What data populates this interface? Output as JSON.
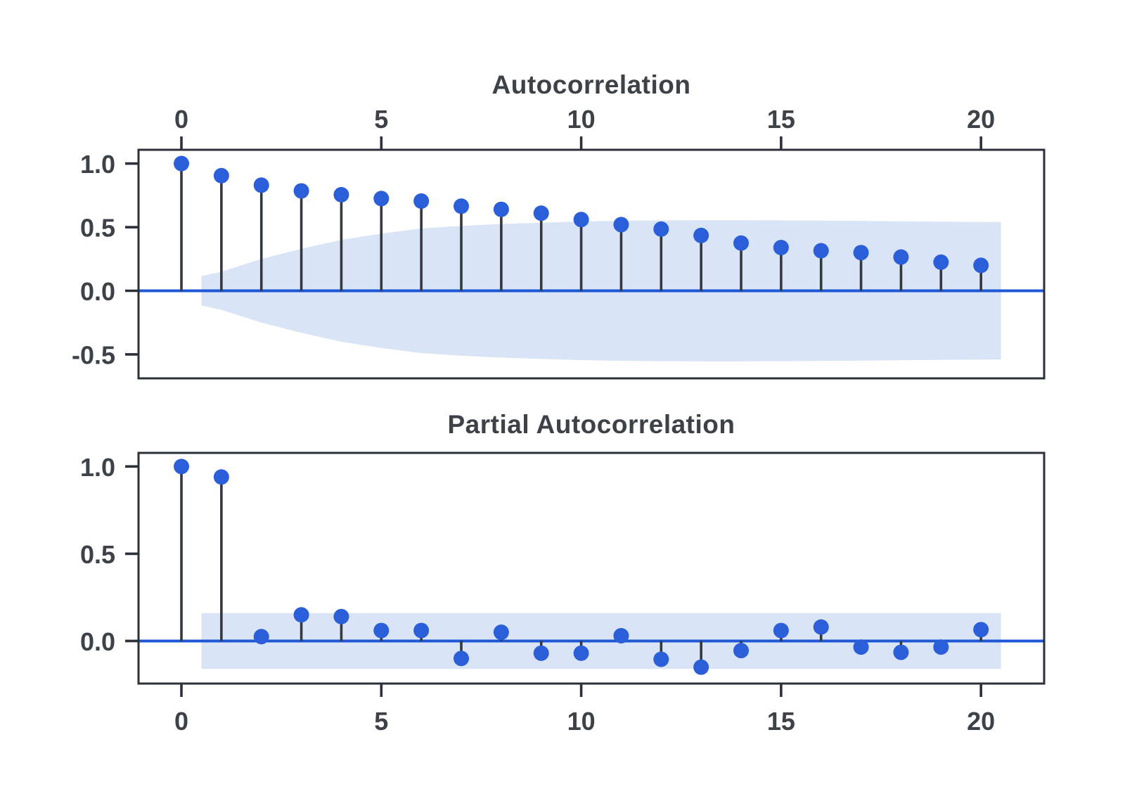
{
  "figure": {
    "background": "#ffffff",
    "colors": {
      "dot": "#2b5ed9",
      "stem": "#34383f",
      "zero_line": "#1e58d6",
      "confidence_band": "#dae4f7",
      "axis": "#2c303a",
      "tick_text": "#3d4148"
    }
  },
  "chart_data": [
    {
      "type": "stem",
      "title": "Autocorrelation",
      "xlabel": "",
      "ylabel": "",
      "x_axis_position": "top",
      "x": [
        0,
        1,
        2,
        3,
        4,
        5,
        6,
        7,
        8,
        9,
        10,
        11,
        12,
        13,
        14,
        15,
        16,
        17,
        18,
        19,
        20
      ],
      "values": [
        1.0,
        0.905,
        0.83,
        0.785,
        0.755,
        0.725,
        0.705,
        0.665,
        0.64,
        0.61,
        0.56,
        0.52,
        0.485,
        0.435,
        0.375,
        0.34,
        0.315,
        0.3,
        0.265,
        0.225,
        0.2
      ],
      "x_ticks": [
        0,
        5,
        10,
        15,
        20
      ],
      "x_tick_labels": [
        "0",
        "5",
        "10",
        "15",
        "20"
      ],
      "y_ticks": [
        1.0,
        0.5,
        0.0,
        -0.5
      ],
      "y_tick_labels": [
        "1.0",
        "0.5",
        "0.0",
        "-0.5"
      ],
      "xlim": [
        -1.073,
        21.58
      ],
      "ylim": [
        -0.688,
        1.108
      ],
      "zero_line": 0,
      "grid": false,
      "legend": null,
      "conf_band": {
        "x": [
          0.5,
          1,
          2,
          3,
          4,
          5,
          6,
          7,
          8,
          9,
          10,
          11,
          12,
          13,
          14,
          15,
          16,
          17,
          18,
          19,
          20,
          20.5
        ],
        "upper": [
          0.115,
          0.15,
          0.25,
          0.33,
          0.4,
          0.45,
          0.49,
          0.51,
          0.525,
          0.535,
          0.545,
          0.55,
          0.553,
          0.555,
          0.555,
          0.553,
          0.551,
          0.549,
          0.546,
          0.543,
          0.541,
          0.54
        ],
        "symmetric": true
      }
    },
    {
      "type": "stem",
      "title": "Partial Autocorrelation",
      "xlabel": "",
      "ylabel": "",
      "x_axis_position": "bottom",
      "x": [
        0,
        1,
        2,
        3,
        4,
        5,
        6,
        7,
        8,
        9,
        10,
        11,
        12,
        13,
        14,
        15,
        16,
        17,
        18,
        19,
        20
      ],
      "values": [
        1.0,
        0.94,
        0.025,
        0.15,
        0.14,
        0.06,
        0.06,
        -0.1,
        0.05,
        -0.07,
        -0.07,
        0.03,
        -0.105,
        -0.15,
        -0.055,
        0.06,
        0.08,
        -0.035,
        -0.065,
        -0.035,
        0.065
      ],
      "x_ticks": [
        0,
        5,
        10,
        15,
        20
      ],
      "x_tick_labels": [
        "0",
        "5",
        "10",
        "15",
        "20"
      ],
      "y_ticks": [
        1.0,
        0.5,
        0.0
      ],
      "y_tick_labels": [
        "1.0",
        "0.5",
        "0.0"
      ],
      "xlim": [
        -1.073,
        21.58
      ],
      "ylim": [
        -0.244,
        1.078
      ],
      "zero_line": 0,
      "grid": false,
      "legend": null,
      "conf_band": {
        "x": [
          0.5,
          20.5
        ],
        "upper": [
          0.16,
          0.16
        ],
        "symmetric": true
      }
    }
  ]
}
